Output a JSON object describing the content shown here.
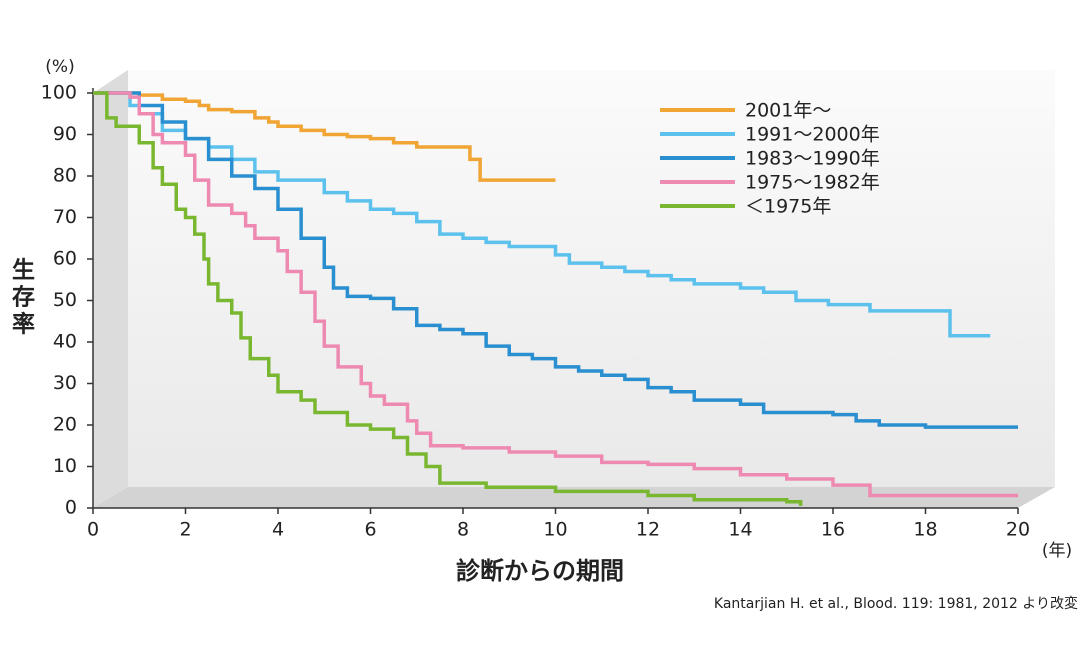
{
  "chart_data": {
    "type": "line",
    "step": true,
    "y_unit": "(%)",
    "ylabel": "生存率",
    "xlabel": "診断からの期間",
    "x_unit": "(年)",
    "source": "Kantarjian H. et al., Blood. 119: 1981, 2012 より改変",
    "xlim": [
      0,
      20
    ],
    "xticks": [
      0,
      2,
      4,
      6,
      8,
      10,
      12,
      14,
      16,
      18,
      20
    ],
    "ylim": [
      0,
      100
    ],
    "yticks": [
      0,
      10,
      20,
      30,
      40,
      50,
      60,
      70,
      80,
      90,
      100
    ],
    "legend": "upper right",
    "series": [
      {
        "name": "2001年〜",
        "color": "#f0a535",
        "x": [
          0,
          0.5,
          1,
          1.5,
          2,
          2.3,
          2.5,
          3,
          3.5,
          3.8,
          4,
          4.5,
          5,
          5.5,
          6,
          6.5,
          7,
          8,
          8.15,
          8.37,
          10
        ],
        "values": [
          100,
          100,
          99.5,
          98.5,
          98,
          97,
          96,
          95.5,
          94,
          93,
          92,
          91,
          90,
          89.5,
          89,
          88,
          87,
          87,
          84,
          79,
          79
        ]
      },
      {
        "name": "1991〜2000年",
        "color": "#5cc1ec",
        "x": [
          0,
          0.8,
          1,
          1.5,
          2,
          2.5,
          3,
          3.5,
          4,
          5,
          5.5,
          6,
          6.5,
          7,
          7.5,
          8,
          8.5,
          9,
          10,
          10.3,
          11,
          11.5,
          12,
          12.5,
          13,
          14,
          14.5,
          15.2,
          15.9,
          16.8,
          18.53,
          19.4
        ],
        "values": [
          100,
          97,
          95,
          91,
          89,
          87,
          84,
          81,
          79,
          76,
          74,
          72,
          71,
          69,
          66,
          65,
          64,
          63,
          61,
          59,
          58,
          57,
          56,
          55,
          54,
          53,
          52,
          50,
          49,
          47.5,
          41.5,
          41.5
        ]
      },
      {
        "name": "1983〜1990年",
        "color": "#2a8fd0",
        "x": [
          0,
          1,
          1.5,
          2,
          2.5,
          3,
          3.5,
          4,
          4.5,
          5,
          5.2,
          5.5,
          6,
          6.5,
          7,
          7.5,
          8,
          8.5,
          9,
          9.5,
          10,
          10.5,
          11,
          11.5,
          12,
          12.5,
          13,
          14,
          14.5,
          16,
          16.5,
          17,
          18,
          20
        ],
        "values": [
          100,
          97,
          93,
          89,
          84,
          80,
          77,
          72,
          65,
          58,
          53,
          51,
          50.5,
          48,
          44,
          43,
          42,
          39,
          37,
          36,
          34,
          33,
          32,
          31,
          29,
          28,
          26,
          25,
          23,
          22.5,
          21,
          20,
          19.5,
          19.5
        ]
      },
      {
        "name": "1975〜1982年",
        "color": "#ee8ab2",
        "x": [
          0,
          0.8,
          1,
          1.3,
          1.5,
          2,
          2.2,
          2.5,
          3,
          3.3,
          3.5,
          4,
          4.2,
          4.5,
          4.8,
          5,
          5.3,
          5.8,
          6,
          6.3,
          6.8,
          7,
          7.3,
          8,
          9,
          10,
          11,
          12,
          13,
          14,
          15,
          16,
          16.8,
          20
        ],
        "values": [
          100,
          99,
          95,
          90,
          88,
          85,
          79,
          73,
          71,
          68,
          65,
          62,
          57,
          52,
          45,
          39,
          34,
          30,
          27,
          25,
          21,
          18,
          15,
          14.5,
          13.5,
          12.5,
          11,
          10.5,
          9.5,
          8,
          7,
          5.5,
          3,
          3
        ]
      },
      {
        "name": "＜1975年",
        "color": "#7ab730",
        "x": [
          0,
          0.3,
          0.5,
          1,
          1.3,
          1.5,
          1.8,
          2,
          2.2,
          2.4,
          2.5,
          2.7,
          3,
          3.2,
          3.4,
          3.8,
          4,
          4.5,
          4.8,
          5.5,
          6,
          6.5,
          6.8,
          7.2,
          7.5,
          8.5,
          10,
          11.5,
          12,
          13,
          15,
          15.3
        ],
        "values": [
          100,
          94,
          92,
          88,
          82,
          78,
          72,
          70,
          66,
          60,
          54,
          50,
          47,
          41,
          36,
          32,
          28,
          26,
          23,
          20,
          19,
          17,
          13,
          10,
          6,
          5,
          4,
          4,
          3,
          2,
          1.5,
          0.5
        ]
      }
    ]
  }
}
